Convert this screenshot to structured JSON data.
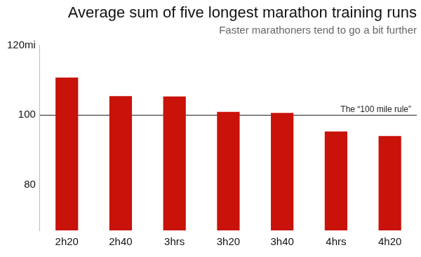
{
  "chart_data": {
    "type": "bar",
    "title": "Average sum of five longest marathon training runs",
    "subtitle": "Faster marathoners tend to go a bit further",
    "categories": [
      "2h20",
      "2h40",
      "3hrs",
      "3h20",
      "3h40",
      "4hrs",
      "4h20"
    ],
    "values": [
      110.7,
      105.4,
      105.3,
      100.9,
      100.6,
      95.3,
      94.0
    ],
    "color": "#c8120a",
    "ylim": [
      67,
      120
    ],
    "yticks": [
      80,
      100,
      {
        "value": 120,
        "label": "120mi"
      }
    ],
    "grid": false,
    "reference_line": {
      "value": 100,
      "label": "The “100 mile rule”"
    }
  }
}
